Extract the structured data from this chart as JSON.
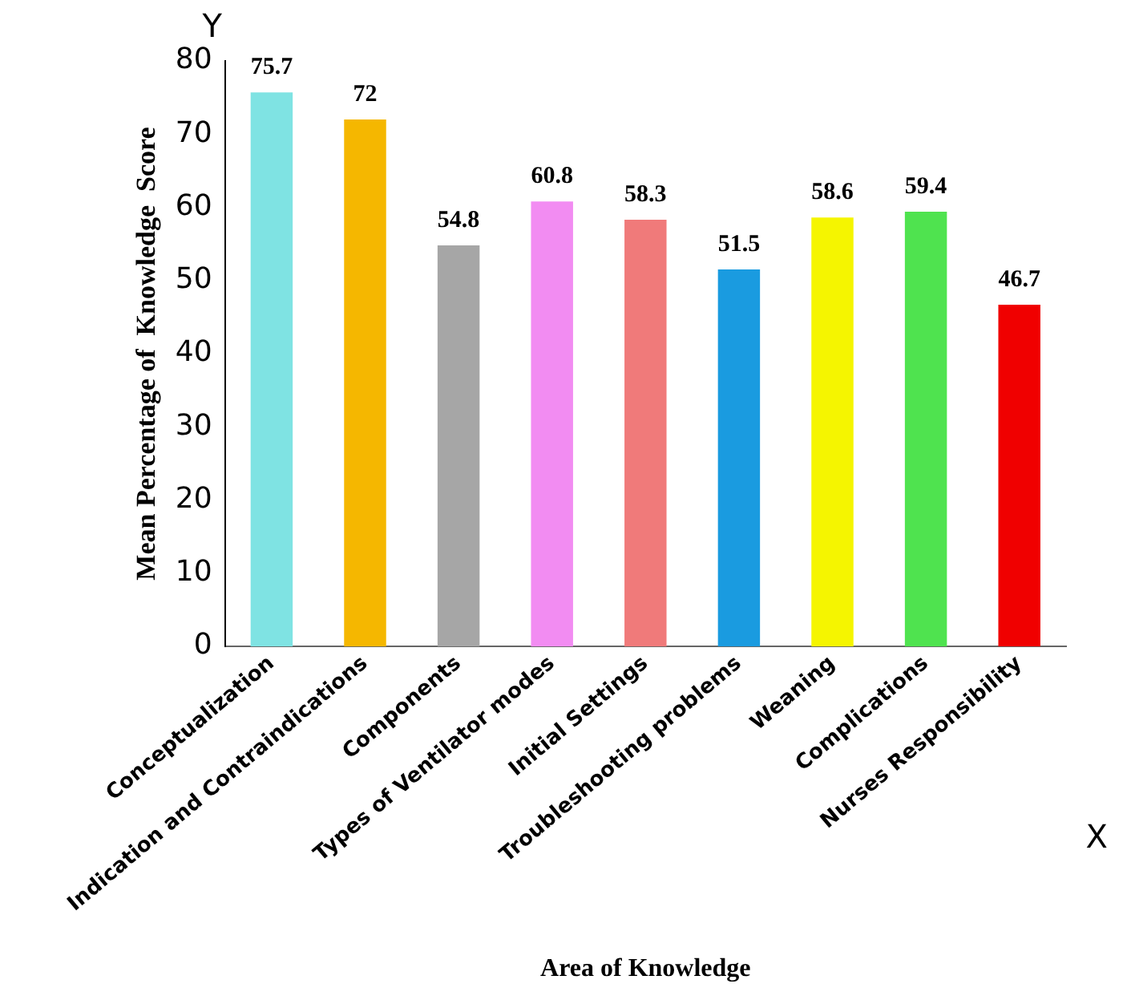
{
  "chart_data": {
    "type": "bar",
    "xlabel": "Area of Knowledge",
    "ylabel": "Mean Percentage of  Knowledge  Score",
    "categories": [
      "Conceptualization",
      "Indication and Contraindications",
      "Components",
      "Types of Ventilator modes",
      "Initial Settings",
      "Troubleshooting problems",
      "Weaning",
      "Complications",
      "Nurses Responsibility"
    ],
    "values": [
      75.7,
      72,
      54.8,
      60.8,
      58.3,
      51.5,
      58.6,
      59.4,
      46.7
    ],
    "colors": [
      "#7fe3e3",
      "#f5b700",
      "#a6a6a6",
      "#f28cf2",
      "#f07a7a",
      "#1a9be0",
      "#f5f500",
      "#4fe34f",
      "#f00000"
    ],
    "ylim": [
      0,
      80
    ],
    "yticks": [
      0,
      10,
      20,
      30,
      40,
      50,
      60,
      70,
      80
    ],
    "grid": false,
    "data_labels": true,
    "annotations": [
      "Y",
      "X"
    ]
  }
}
